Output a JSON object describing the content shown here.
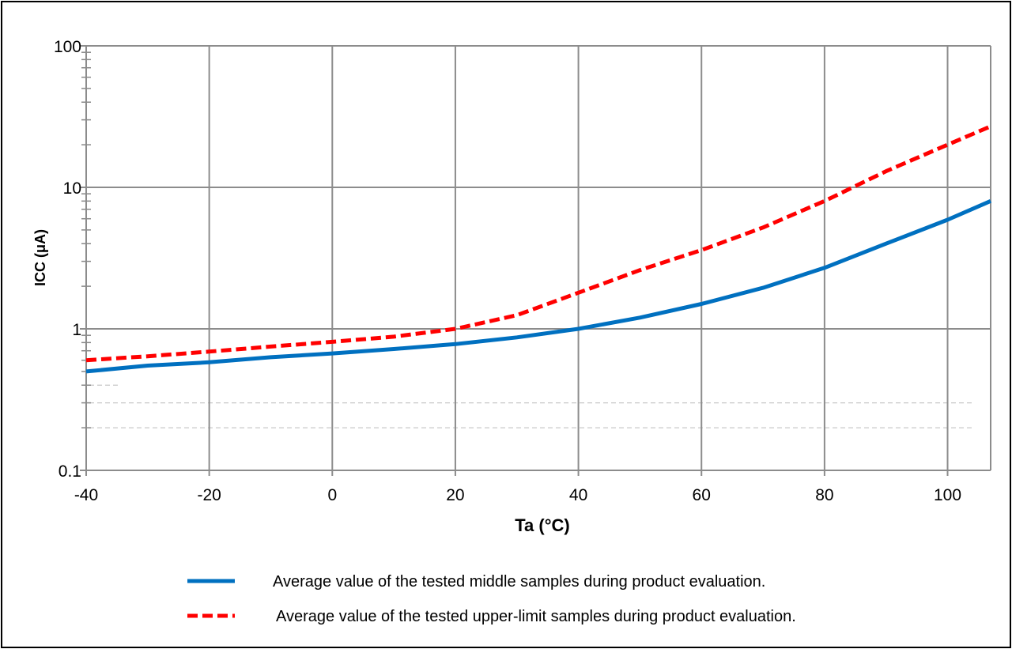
{
  "chart_data": {
    "type": "line",
    "xlabel": "Ta (°C)",
    "ylabel": "ICC (μA)",
    "x_ticks": [
      "-40",
      "-20",
      "0",
      "20",
      "40",
      "60",
      "80",
      "100"
    ],
    "x_tick_values": [
      -40,
      -20,
      0,
      20,
      40,
      60,
      80,
      100
    ],
    "y_ticks": [
      "0.1",
      "1",
      "10",
      "100"
    ],
    "y_tick_values": [
      0.1,
      1,
      10,
      100
    ],
    "y_scale": "log",
    "xlim": [
      -40,
      107
    ],
    "ylim": [
      0.1,
      100
    ],
    "grid": true,
    "legend_position": "bottom",
    "series": [
      {
        "name": "Average value of the tested middle samples during product evaluation.",
        "style": "solid",
        "color": "#0070C0",
        "x": [
          -40,
          -30,
          -20,
          -10,
          0,
          10,
          20,
          30,
          40,
          50,
          60,
          70,
          80,
          90,
          100,
          107
        ],
        "y": [
          0.5,
          0.55,
          0.58,
          0.63,
          0.67,
          0.72,
          0.78,
          0.87,
          1.0,
          1.2,
          1.5,
          1.95,
          2.7,
          4.0,
          5.9,
          8.0
        ]
      },
      {
        "name": "Average value of the tested upper-limit samples during product evaluation.",
        "style": "dashed",
        "color": "#FF0000",
        "x": [
          -40,
          -30,
          -20,
          -10,
          0,
          10,
          20,
          30,
          40,
          50,
          60,
          70,
          80,
          90,
          100,
          107
        ],
        "y": [
          0.6,
          0.64,
          0.69,
          0.75,
          0.81,
          0.88,
          1.0,
          1.25,
          1.8,
          2.6,
          3.6,
          5.2,
          8.0,
          13.0,
          20.0,
          27.0
        ]
      }
    ]
  }
}
